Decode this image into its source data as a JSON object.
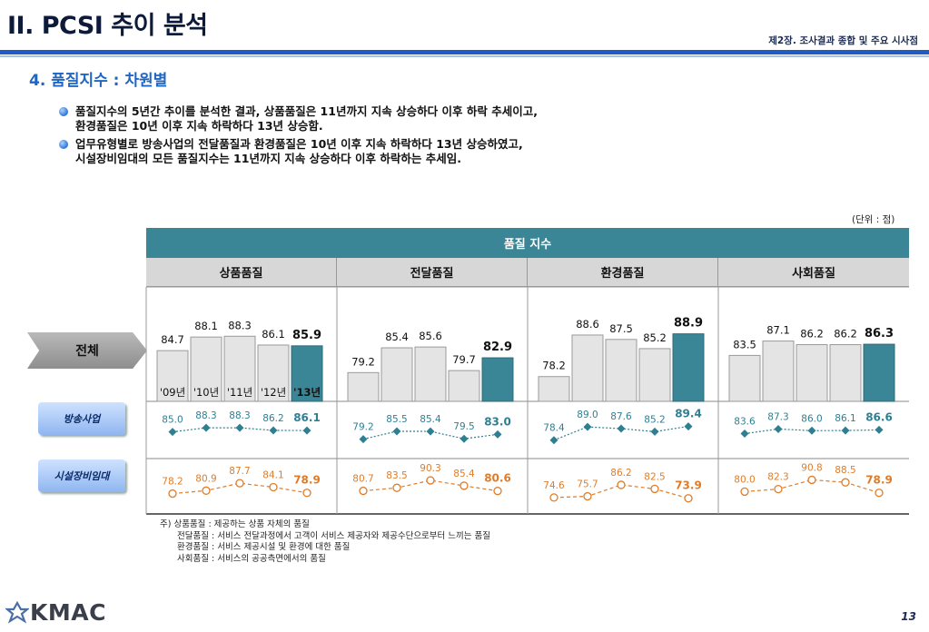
{
  "header": {
    "title": "II. PCSI 추이 분석",
    "chapter": "제2장. 조사결과 종합 및 주요 시사점",
    "subtitle": "4. 품질지수 : 차원별"
  },
  "bullets": [
    {
      "lines": [
        "품질지수의 5년간 추이를 분석한 결과, 상품품질은 11년까지 지속 상승하다 이후 하락 추세이고,",
        "환경품질은 10년 이후 지속 하락하다 13년 상승함."
      ]
    },
    {
      "lines": [
        "업무유형별로 방송사업의 전달품질과 환경품질은 10년 이후 지속 하락하다 13년 상승하였고,",
        "시설장비임대의 모든 품질지수는 11년까지 지속 상승하다 이후 하락하는 추세임."
      ]
    }
  ],
  "unit": "(단위 : 점)",
  "table": {
    "main_header": "품질 지수",
    "dimensions": [
      "상품품질",
      "전달품질",
      "환경품질",
      "사회품질"
    ],
    "row_labels": {
      "total": "전체",
      "broadcast": "방송사업",
      "facility": "시설장비임대"
    }
  },
  "chart_data": {
    "type": "bar",
    "years": [
      "'09년",
      "'10년",
      "'11년",
      "'12년",
      "'13년"
    ],
    "groups": [
      "상품품질",
      "전달품질",
      "환경품질",
      "사회품질"
    ],
    "series": [
      {
        "name": "전체",
        "type": "bar",
        "values": [
          [
            84.7,
            88.1,
            88.3,
            86.1,
            85.9
          ],
          [
            79.2,
            85.4,
            85.6,
            79.7,
            82.9
          ],
          [
            78.2,
            88.6,
            87.5,
            85.2,
            88.9
          ],
          [
            83.5,
            87.1,
            86.2,
            86.2,
            86.3
          ]
        ]
      },
      {
        "name": "방송사업",
        "type": "line",
        "values": [
          [
            85.0,
            88.3,
            88.3,
            86.2,
            86.1
          ],
          [
            79.2,
            85.5,
            85.4,
            79.5,
            83.0
          ],
          [
            78.4,
            89.0,
            87.6,
            85.2,
            89.4
          ],
          [
            83.6,
            87.3,
            86.0,
            86.1,
            86.6
          ]
        ]
      },
      {
        "name": "시설장비임대",
        "type": "line",
        "values": [
          [
            78.2,
            80.9,
            87.7,
            84.1,
            78.9
          ],
          [
            80.7,
            83.5,
            90.3,
            85.4,
            80.6
          ],
          [
            74.6,
            75.7,
            86.2,
            82.5,
            73.9
          ],
          [
            80.0,
            82.3,
            90.8,
            88.5,
            78.9
          ]
        ]
      }
    ],
    "colors": {
      "bar_past": "#e4e4e4",
      "bar_current": "#3a8697",
      "broadcast": "#2f7f92",
      "facility": "#e07c28",
      "broadcast_label": "#2f7f92",
      "facility_label": "#e07c28"
    }
  },
  "footnote": [
    "주) 상품품질 : 제공하는 상품 자체의 품질",
    "전달품질 : 서비스 전달과정에서 고객이 서비스 제공자와 제공수단으로부터 느끼는 품질",
    "환경품질 : 서비스 제공시설 및 환경에 대한 품질",
    "사회품질 : 서비스의 공공측면에서의 품질"
  ],
  "logo_text": "KMAC",
  "page_number": "13"
}
